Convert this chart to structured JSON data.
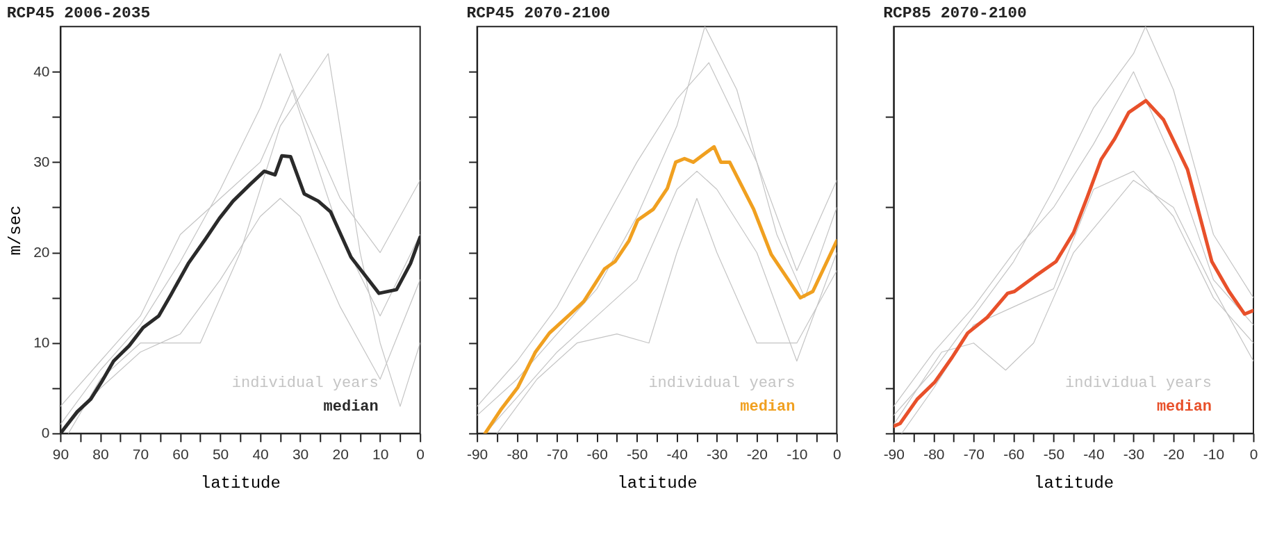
{
  "chart_data": [
    {
      "type": "line",
      "title": "RCP45 2006-2035",
      "xlabel": "latitude",
      "ylabel": "m/sec",
      "legend": "bottom right",
      "xlim": [
        90,
        0
      ],
      "ylim": [
        0,
        45
      ],
      "xticks": [
        90,
        {
          "value": 85,
          "label": null
        },
        80,
        {
          "value": 75,
          "label": null
        },
        70,
        {
          "value": 65,
          "label": null
        },
        60,
        {
          "value": 55,
          "label": null
        },
        50,
        {
          "value": 45,
          "label": null
        },
        40,
        {
          "value": 35,
          "label": null
        },
        30,
        {
          "value": 25,
          "label": null
        },
        20,
        {
          "value": 15,
          "label": null
        },
        10,
        {
          "value": 5,
          "label": null
        },
        0
      ],
      "yticks": [
        0,
        {
          "value": 5,
          "label": null
        },
        10,
        {
          "value": 15,
          "label": null
        },
        20,
        {
          "value": 25,
          "label": null
        },
        30,
        {
          "value": 35,
          "label": null
        },
        40
      ],
      "series": [
        {
          "name": "individual years",
          "color": "#c4c4c4",
          "x": [
            90,
            80,
            70,
            60,
            50,
            40,
            35,
            30,
            20,
            10,
            0
          ],
          "values": [
            1,
            7,
            12,
            19,
            27,
            36,
            42,
            36,
            26,
            20,
            28
          ]
        },
        {
          "color": "#c4c4c4",
          "x": [
            90,
            80,
            70,
            60,
            50,
            40,
            35,
            30,
            20,
            10,
            0
          ],
          "values": [
            0,
            5,
            9,
            11,
            17,
            24,
            26,
            24,
            14,
            6,
            17
          ]
        },
        {
          "color": "#c4c4c4",
          "x": [
            88,
            80,
            70,
            60,
            55,
            45,
            35,
            23,
            15,
            10,
            5,
            0
          ],
          "values": [
            0,
            6,
            10,
            10,
            10,
            20,
            34,
            42,
            20,
            10,
            3,
            10
          ]
        },
        {
          "color": "#c4c4c4",
          "x": [
            90,
            80,
            70,
            60,
            50,
            40,
            32,
            20,
            10,
            0
          ],
          "values": [
            3,
            8,
            13,
            22,
            26,
            30,
            38,
            22,
            13,
            22
          ]
        },
        {
          "name": "median",
          "color": "#2a2a2a",
          "x": [
            90,
            85.8,
            82.4,
            79.7,
            76.7,
            72.8,
            69.3,
            65.4,
            62.4,
            58,
            53.7,
            50.2,
            46.8,
            42.4,
            39,
            36.3,
            34.6,
            32.4,
            29,
            25.5,
            22.4,
            17.3,
            10.3,
            5.9,
            2.4,
            0
          ],
          "values": [
            0,
            2.4,
            3.8,
            5.7,
            8,
            9.7,
            11.7,
            13,
            15.3,
            18.8,
            21.5,
            23.8,
            25.7,
            27.6,
            29,
            28.6,
            30.7,
            30.6,
            26.5,
            25.7,
            24.5,
            19.5,
            15.5,
            15.9,
            18.8,
            21.7
          ]
        }
      ]
    },
    {
      "type": "line",
      "title": "RCP45 2070-2100",
      "xlabel": "latitude",
      "legend": "bottom right",
      "tick_labels": "x",
      "xlim": [
        -90,
        0
      ],
      "ylim": [
        0,
        45
      ],
      "xticks": [
        -90,
        {
          "value": -85,
          "label": null
        },
        -80,
        {
          "value": -75,
          "label": null
        },
        -70,
        {
          "value": -65,
          "label": null
        },
        -60,
        {
          "value": -55,
          "label": null
        },
        -50,
        {
          "value": -45,
          "label": null
        },
        -40,
        {
          "value": -35,
          "label": null
        },
        -30,
        {
          "value": -25,
          "label": null
        },
        -20,
        {
          "value": -15,
          "label": null
        },
        -10,
        {
          "value": -5,
          "label": null
        },
        0
      ],
      "yticks": [
        {
          "value": 0,
          "label": null
        },
        {
          "value": 5,
          "label": null
        },
        {
          "value": 10,
          "label": null
        },
        {
          "value": 15,
          "label": null
        },
        {
          "value": 20,
          "label": null
        },
        {
          "value": 25,
          "label": null
        },
        {
          "value": 30,
          "label": null
        },
        {
          "value": 35,
          "label": null
        },
        {
          "value": 40,
          "label": null
        }
      ],
      "series": [
        {
          "name": "individual years",
          "color": "#c4c4c4",
          "x": [
            -90,
            -80,
            -70,
            -60,
            -50,
            -40,
            -32,
            -20,
            -10,
            0
          ],
          "values": [
            3,
            8,
            14,
            22,
            30,
            37,
            41,
            30,
            18,
            28
          ]
        },
        {
          "color": "#c4c4c4",
          "x": [
            -88,
            -80,
            -70,
            -60,
            -50,
            -40,
            -35,
            -30,
            -20,
            -10,
            0
          ],
          "values": [
            0,
            4,
            9,
            13,
            17,
            27,
            29,
            27,
            20,
            8,
            20
          ]
        },
        {
          "color": "#c4c4c4",
          "x": [
            -90,
            -80,
            -70,
            -60,
            -50,
            -40,
            -33,
            -25,
            -15,
            -8,
            0
          ],
          "values": [
            2,
            6,
            11,
            16,
            24,
            34,
            45,
            38,
            22,
            15,
            25
          ]
        },
        {
          "color": "#c4c4c4",
          "x": [
            -85,
            -75,
            -65,
            -55,
            -47,
            -40,
            -35,
            -30,
            -20,
            -10,
            0
          ],
          "values": [
            0,
            6,
            10,
            11,
            10,
            20,
            26,
            20,
            10,
            10,
            18
          ]
        },
        {
          "name": "median",
          "color": "#f0a020",
          "x": [
            -88,
            -84.1,
            -79.8,
            -75.4,
            -71.9,
            -66.7,
            -63.3,
            -58.1,
            -55.5,
            -52,
            -49.8,
            -45.9,
            -42.4,
            -40.3,
            -38.1,
            -35.9,
            -30.7,
            -29,
            -26.8,
            -20.8,
            -16.4,
            -9.1,
            -6,
            0
          ],
          "values": [
            0,
            2.6,
            5.1,
            9,
            11.1,
            13.2,
            14.6,
            18.2,
            19,
            21.3,
            23.6,
            24.8,
            27.1,
            30,
            30.4,
            30,
            31.7,
            30,
            30,
            24.8,
            19.8,
            15,
            15.7,
            21.3
          ]
        }
      ]
    },
    {
      "type": "line",
      "title": "RCP85 2070-2100",
      "xlabel": "latitude",
      "legend": "bottom right",
      "tick_labels": "x",
      "xlim": [
        -90,
        0
      ],
      "ylim": [
        0,
        45
      ],
      "xticks": [
        -90,
        {
          "value": -85,
          "label": null
        },
        -80,
        {
          "value": -75,
          "label": null
        },
        -70,
        {
          "value": -65,
          "label": null
        },
        -60,
        {
          "value": -55,
          "label": null
        },
        -50,
        {
          "value": -45,
          "label": null
        },
        -40,
        {
          "value": -35,
          "label": null
        },
        -30,
        {
          "value": -25,
          "label": null
        },
        -20,
        {
          "value": -15,
          "label": null
        },
        -10,
        {
          "value": -5,
          "label": null
        },
        0
      ],
      "yticks": [
        {
          "value": 0,
          "label": null
        },
        {
          "value": 5,
          "label": null
        },
        {
          "value": 15,
          "label": null
        },
        {
          "value": 25,
          "label": null
        },
        {
          "value": 35,
          "label": null
        }
      ],
      "series": [
        {
          "name": "individual years",
          "color": "#c4c4c4",
          "x": [
            -90,
            -80,
            -70,
            -60,
            -50,
            -40,
            -30,
            -27,
            -20,
            -10,
            0
          ],
          "values": [
            2,
            7,
            13,
            19,
            27,
            36,
            42,
            45,
            38,
            22,
            15
          ]
        },
        {
          "color": "#c4c4c4",
          "x": [
            -88,
            -80,
            -70,
            -60,
            -50,
            -40,
            -30,
            -20,
            -10,
            0
          ],
          "values": [
            0,
            5,
            12,
            14,
            16,
            27,
            29,
            24,
            15,
            10
          ]
        },
        {
          "color": "#c4c4c4",
          "x": [
            -90,
            -80,
            -70,
            -60,
            -50,
            -40,
            -30,
            -20,
            -10,
            0
          ],
          "values": [
            3,
            9,
            14,
            20,
            25,
            32,
            40,
            30,
            17,
            12
          ]
        },
        {
          "color": "#c4c4c4",
          "x": [
            -90,
            -78,
            -70,
            -62,
            -55,
            -45,
            -30,
            -20,
            -10,
            0
          ],
          "values": [
            1,
            9,
            10,
            7,
            10,
            20,
            28,
            25,
            16,
            8
          ]
        },
        {
          "name": "median",
          "color": "#e8502a",
          "x": [
            -90,
            -88.4,
            -84.1,
            -79.7,
            -75.4,
            -71.5,
            -66.7,
            -61.5,
            -59.8,
            -54.6,
            -49.4,
            -45,
            -41.6,
            -38.1,
            -34.7,
            -31.2,
            -26.9,
            -22.5,
            -16.5,
            -10.4,
            -6.1,
            -2.2,
            0
          ],
          "values": [
            0.8,
            1.1,
            3.8,
            5.7,
            8.4,
            11.1,
            12.8,
            15.5,
            15.7,
            17.4,
            19,
            22.2,
            26.1,
            30.3,
            32.6,
            35.5,
            36.8,
            34.7,
            29.2,
            19,
            15.7,
            13.2,
            13.6
          ]
        }
      ]
    }
  ]
}
